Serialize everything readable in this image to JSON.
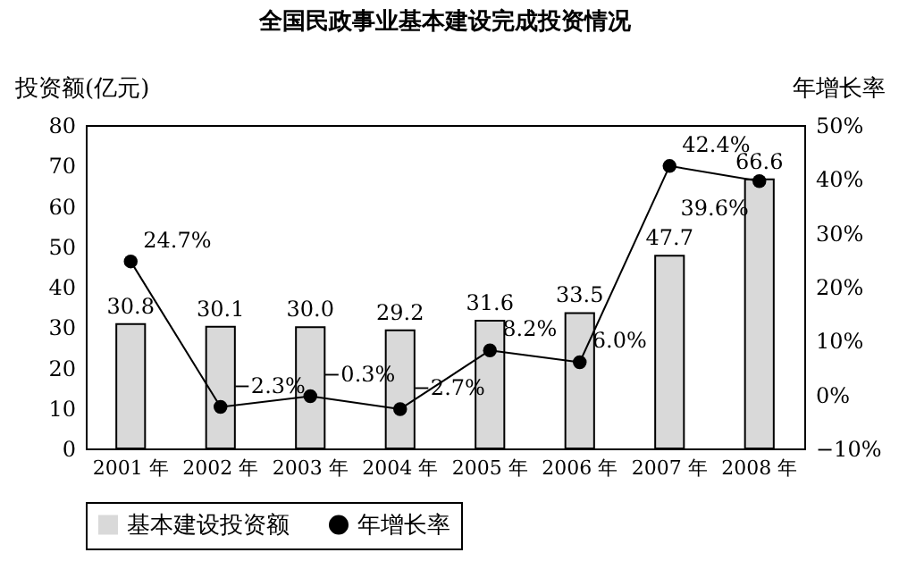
{
  "chart_data": {
    "type": "bar",
    "title": "全国民政事业基本建设完成投资情况",
    "ylabel": "投资额(亿元)",
    "y2label": "年增长率",
    "categories": [
      "2001 年",
      "2002 年",
      "2003 年",
      "2004 年",
      "2005 年",
      "2006 年",
      "2007 年",
      "2008 年"
    ],
    "series": [
      {
        "name": "基本建设投资额",
        "color": "#d9d9d9",
        "values": [
          30.8,
          30.1,
          30.0,
          29.2,
          31.6,
          33.5,
          47.7,
          66.6
        ],
        "value_labels": [
          "30.8",
          "30.1",
          "30.0",
          "29.2",
          "31.6",
          "33.5",
          "47.7",
          "66.6"
        ]
      },
      {
        "name": "年增长率",
        "type": "line",
        "axis": "y2",
        "color": "#000000",
        "values": [
          24.7,
          -2.3,
          -0.3,
          -2.7,
          8.2,
          6.0,
          42.4,
          39.6
        ],
        "value_labels": [
          "24.7%",
          "−2.3%",
          "−0.3%",
          "−2.7%",
          "8.2%",
          "6.0%",
          "42.4%",
          "39.6%"
        ]
      }
    ],
    "ylim": [
      0,
      80
    ],
    "yticks": [
      0,
      10,
      20,
      30,
      40,
      50,
      60,
      70,
      80
    ],
    "y2lim": [
      -10,
      50
    ],
    "y2ticks": [
      {
        "value": -10,
        "label": "−10%"
      },
      {
        "value": 0,
        "label": "0%"
      },
      {
        "value": 10,
        "label": "10%"
      },
      {
        "value": 20,
        "label": "20%"
      },
      {
        "value": 30,
        "label": "30%"
      },
      {
        "value": 40,
        "label": "40%"
      },
      {
        "value": 50,
        "label": "50%"
      }
    ],
    "grid": false,
    "legend": "bottom",
    "marker": "circle",
    "line_style": "solid"
  }
}
